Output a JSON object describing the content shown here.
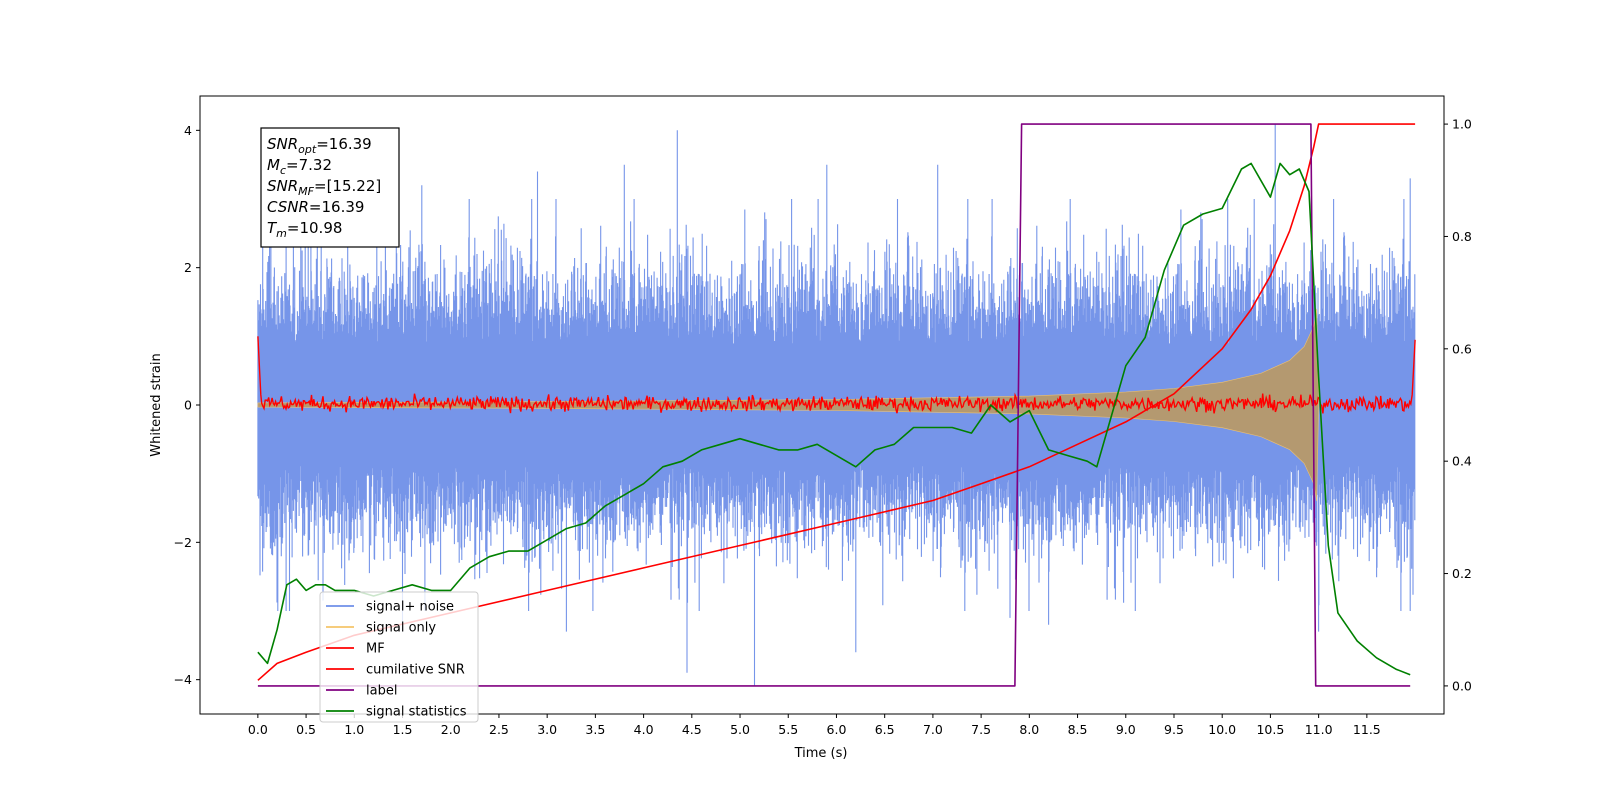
{
  "chart_data": {
    "type": "line",
    "xlabel": "Time (s)",
    "ylabel": "Whitened strain",
    "ylabel_right": "",
    "xlim": [
      -0.6,
      12.3
    ],
    "ylim": [
      -4.5,
      4.5
    ],
    "ylim_right": [
      -0.05,
      1.05
    ],
    "x_ticks": [
      0.0,
      0.5,
      1.0,
      1.5,
      2.0,
      2.5,
      3.0,
      3.5,
      4.0,
      4.5,
      5.0,
      5.5,
      6.0,
      6.5,
      7.0,
      7.5,
      8.0,
      8.5,
      9.0,
      9.5,
      10.0,
      10.5,
      11.0,
      11.5
    ],
    "x_tick_labels": [
      "0.0",
      "0.5",
      "1.0",
      "1.5",
      "2.0",
      "2.5",
      "3.0",
      "3.5",
      "4.0",
      "4.5",
      "5.0",
      "5.5",
      "6.0",
      "6.5",
      "7.0",
      "7.5",
      "8.0",
      "8.5",
      "9.0",
      "9.5",
      "10.0",
      "10.5",
      "11.0",
      "11.5"
    ],
    "y_ticks": [
      -4,
      -2,
      0,
      2,
      4
    ],
    "y_tick_labels": [
      "−4",
      "−2",
      "0",
      "2",
      "4"
    ],
    "y_right_ticks": [
      0.0,
      0.2,
      0.4,
      0.6,
      0.8,
      1.0
    ],
    "y_right_tick_labels": [
      "0.0",
      "0.2",
      "0.4",
      "0.6",
      "0.8",
      "1.0"
    ],
    "legend_position": "lower-left",
    "grid": false,
    "annotation": {
      "snr_opt": {
        "main": "SNR",
        "sub": "opt",
        "value": "=16.39"
      },
      "mc": {
        "main": "M",
        "sub": "c",
        "value": "=7.32"
      },
      "snr_mf": {
        "main": "SNR",
        "sub": "MF",
        "value": "=[15.22]"
      },
      "csnr": {
        "main": "CSNR",
        "value": "=16.39"
      },
      "tm": {
        "main": "T",
        "sub": "m",
        "value": "=10.98"
      }
    },
    "series": [
      {
        "name": "signal+ noise",
        "axis": "left",
        "color": "#6f8fe8",
        "kind": "noise_band",
        "x_range": [
          0.0,
          12.0
        ],
        "typical_upper": 1.6,
        "typical_lower": -1.6,
        "peaks": [
          [
            0.05,
            3.0
          ],
          [
            0.55,
            3.2
          ],
          [
            1.7,
            3.2
          ],
          [
            2.9,
            3.4
          ],
          [
            3.8,
            3.5
          ],
          [
            4.35,
            4.0
          ],
          [
            5.9,
            3.5
          ],
          [
            7.05,
            3.5
          ],
          [
            10.55,
            4.1
          ],
          [
            11.95,
            3.3
          ]
        ],
        "troughs": [
          [
            1.5,
            -3.3
          ],
          [
            3.2,
            -3.3
          ],
          [
            4.45,
            -3.9
          ],
          [
            5.15,
            -4.1
          ],
          [
            6.2,
            -3.6
          ],
          [
            7.8,
            -3.1
          ],
          [
            8.2,
            -3.2
          ],
          [
            11.0,
            -3.3
          ],
          [
            11.95,
            -3.0
          ]
        ]
      },
      {
        "name": "signal only",
        "axis": "left",
        "color": "#f5c46a",
        "kind": "chirp_envelope",
        "envelope": [
          [
            0.0,
            0.03
          ],
          [
            3.0,
            0.05
          ],
          [
            6.0,
            0.08
          ],
          [
            8.0,
            0.13
          ],
          [
            9.0,
            0.19
          ],
          [
            9.5,
            0.24
          ],
          [
            10.0,
            0.33
          ],
          [
            10.4,
            0.46
          ],
          [
            10.7,
            0.65
          ],
          [
            10.85,
            0.85
          ],
          [
            10.95,
            1.15
          ],
          [
            10.98,
            1.4
          ],
          [
            11.0,
            0.0
          ]
        ]
      },
      {
        "name": "MF",
        "axis": "left",
        "color": "#ff0000",
        "kind": "mf_noise",
        "x_range": [
          0.0,
          12.0
        ],
        "amplitude": 0.09,
        "edge_start": [
          [
            0.0,
            1.0
          ],
          [
            0.03,
            0.15
          ]
        ],
        "edge_end": [
          [
            11.97,
            0.15
          ],
          [
            12.0,
            0.95
          ]
        ]
      },
      {
        "name": "cumilative SNR",
        "axis": "right",
        "color": "#ff0000",
        "kind": "line",
        "x": [
          0.0,
          0.2,
          0.5,
          1.0,
          2.0,
          3.0,
          4.0,
          5.0,
          6.0,
          7.0,
          7.5,
          8.0,
          8.5,
          9.0,
          9.5,
          10.0,
          10.3,
          10.5,
          10.7,
          10.85,
          10.95,
          11.0,
          12.0
        ],
        "y": [
          0.01,
          0.04,
          0.06,
          0.09,
          0.13,
          0.17,
          0.21,
          0.25,
          0.29,
          0.33,
          0.36,
          0.39,
          0.43,
          0.47,
          0.52,
          0.6,
          0.67,
          0.73,
          0.81,
          0.89,
          0.96,
          1.0,
          1.0
        ]
      },
      {
        "name": "label",
        "axis": "right",
        "color": "#800080",
        "kind": "line",
        "x": [
          0.0,
          7.85,
          7.92,
          10.92,
          10.97,
          11.95
        ],
        "y": [
          0.0,
          0.0,
          1.0,
          1.0,
          0.0,
          0.0
        ]
      },
      {
        "name": "signal statistics",
        "axis": "right",
        "color": "#008000",
        "kind": "line",
        "x": [
          0.0,
          0.1,
          0.2,
          0.3,
          0.4,
          0.5,
          0.6,
          0.7,
          0.8,
          0.9,
          1.0,
          1.2,
          1.4,
          1.6,
          1.8,
          2.0,
          2.2,
          2.4,
          2.6,
          2.8,
          3.0,
          3.2,
          3.4,
          3.6,
          3.8,
          4.0,
          4.2,
          4.4,
          4.6,
          4.8,
          5.0,
          5.2,
          5.4,
          5.6,
          5.8,
          6.0,
          6.2,
          6.4,
          6.6,
          6.8,
          7.0,
          7.2,
          7.4,
          7.6,
          7.8,
          8.0,
          8.2,
          8.4,
          8.6,
          8.7,
          8.8,
          9.0,
          9.2,
          9.4,
          9.6,
          9.8,
          10.0,
          10.2,
          10.3,
          10.4,
          10.5,
          10.6,
          10.7,
          10.8,
          10.9,
          11.0,
          11.1,
          11.2,
          11.4,
          11.6,
          11.8,
          11.95
        ],
        "y": [
          0.06,
          0.04,
          0.1,
          0.18,
          0.19,
          0.17,
          0.18,
          0.18,
          0.17,
          0.17,
          0.17,
          0.16,
          0.17,
          0.18,
          0.17,
          0.17,
          0.21,
          0.23,
          0.24,
          0.24,
          0.26,
          0.28,
          0.29,
          0.32,
          0.34,
          0.36,
          0.39,
          0.4,
          0.42,
          0.43,
          0.44,
          0.43,
          0.42,
          0.42,
          0.43,
          0.41,
          0.39,
          0.42,
          0.43,
          0.46,
          0.46,
          0.46,
          0.45,
          0.5,
          0.47,
          0.49,
          0.42,
          0.41,
          0.4,
          0.39,
          0.45,
          0.57,
          0.62,
          0.74,
          0.82,
          0.84,
          0.85,
          0.92,
          0.93,
          0.9,
          0.87,
          0.93,
          0.91,
          0.92,
          0.88,
          0.55,
          0.25,
          0.13,
          0.08,
          0.05,
          0.03,
          0.02
        ]
      }
    ]
  }
}
